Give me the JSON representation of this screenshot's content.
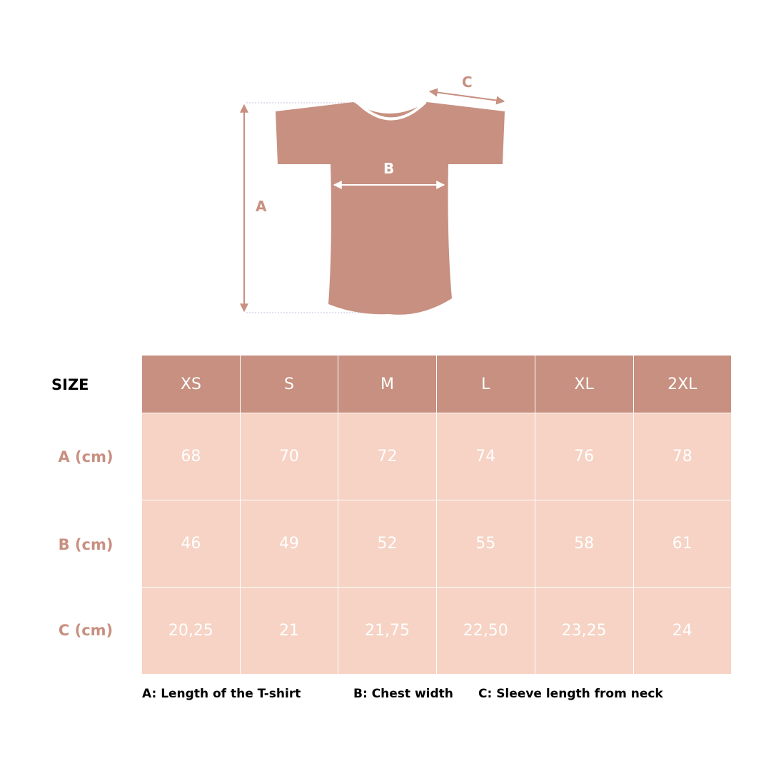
{
  "diagram": {
    "label_a": "A",
    "label_b": "B",
    "label_c": "C"
  },
  "table": {
    "size_label": "SIZE",
    "sizes": [
      "XS",
      "S",
      "M",
      "L",
      "XL",
      "2XL"
    ],
    "rows": [
      {
        "label": "A (cm)",
        "values": [
          "68",
          "70",
          "72",
          "74",
          "76",
          "78"
        ]
      },
      {
        "label": "B (cm)",
        "values": [
          "46",
          "49",
          "52",
          "55",
          "58",
          "61"
        ]
      },
      {
        "label": "C (cm)",
        "values": [
          "20,25",
          "21",
          "21,75",
          "22,50",
          "23,25",
          "24"
        ]
      }
    ]
  },
  "legend": {
    "a": "A: Length of the T-shirt",
    "b": "B: Chest width",
    "c": "C: Sleeve length from neck"
  },
  "colors": {
    "header": "#c79080",
    "cell": "#f6d3c4",
    "accent": "#c89080"
  }
}
